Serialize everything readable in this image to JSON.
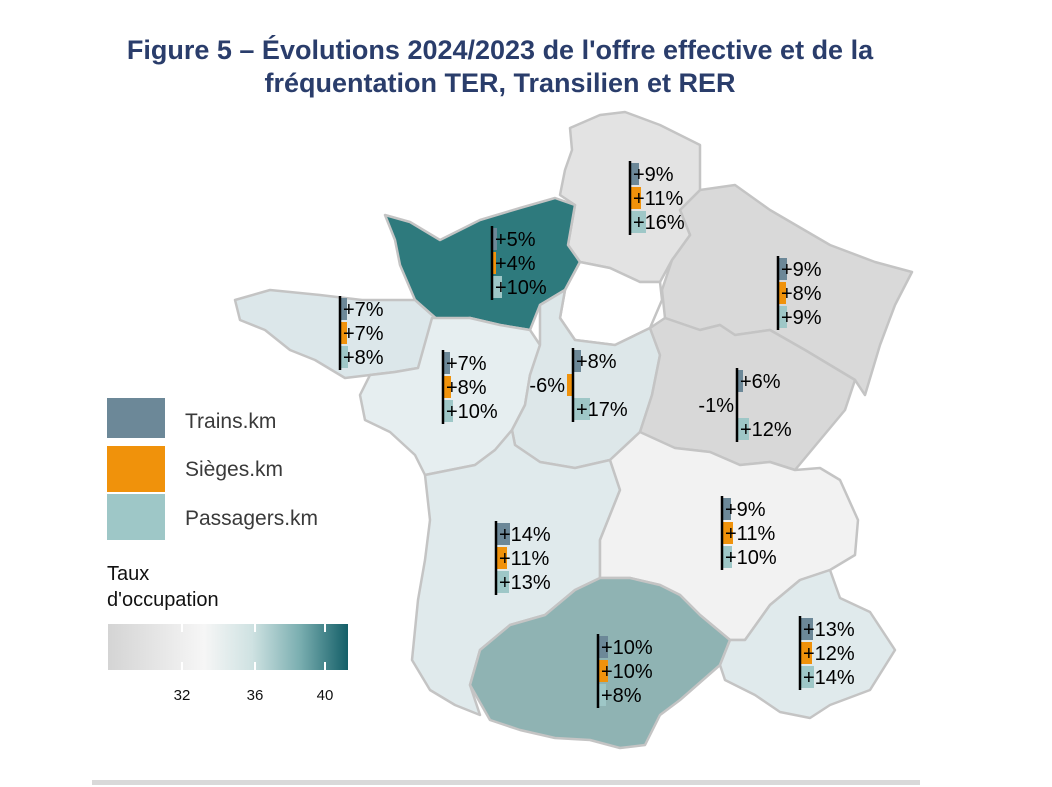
{
  "title": "Figure 5 – Évolutions 2024/2023 de l'offre effective et de la fréquentation TER, Transilien et RER",
  "colors": {
    "trains": "#6c8898",
    "sieges": "#f0920b",
    "passagers": "#9ec7c7",
    "occupation_scale": [
      "#d8d8d8",
      "#f4f4f4",
      "#c4dcdc",
      "#7aaeb0",
      "#1f6b73"
    ]
  },
  "legend": {
    "items": [
      {
        "label": "Trains.km",
        "color": "#6c8898"
      },
      {
        "label": "Sièges.km",
        "color": "#f0920b"
      },
      {
        "label": "Passagers.km",
        "color": "#9ec7c7"
      }
    ],
    "scale_title_line1": "Taux",
    "scale_title_line2": "d'occupation",
    "scale_ticks": [
      "32",
      "36",
      "40"
    ]
  },
  "regions": [
    {
      "key": "hauts-de-france",
      "trains": "+9%",
      "sieges": "+11%",
      "passagers": "+16%",
      "trains_v": 9,
      "sieges_v": 11,
      "passagers_v": 16
    },
    {
      "key": "normandie",
      "trains": "+5%",
      "sieges": "+4%",
      "passagers": "+10%",
      "trains_v": 5,
      "sieges_v": 4,
      "passagers_v": 10
    },
    {
      "key": "grand-est",
      "trains": "+9%",
      "sieges": "+8%",
      "passagers": "+9%",
      "trains_v": 9,
      "sieges_v": 8,
      "passagers_v": 9
    },
    {
      "key": "bretagne",
      "trains": "+7%",
      "sieges": "+7%",
      "passagers": "+8%",
      "trains_v": 7,
      "sieges_v": 7,
      "passagers_v": 8
    },
    {
      "key": "pays-de-la-loire",
      "trains": "+7%",
      "sieges": "+8%",
      "passagers": "+10%",
      "trains_v": 7,
      "sieges_v": 8,
      "passagers_v": 10
    },
    {
      "key": "centre-val-de-loire",
      "trains": "+8%",
      "sieges": "-6%",
      "passagers": "+17%",
      "trains_v": 8,
      "sieges_v": -6,
      "passagers_v": 17
    },
    {
      "key": "bourgogne-franche-comte",
      "trains": "+6%",
      "sieges": "-1%",
      "passagers": "+12%",
      "trains_v": 6,
      "sieges_v": -1,
      "passagers_v": 12
    },
    {
      "key": "nouvelle-aquitaine",
      "trains": "+14%",
      "sieges": "+11%",
      "passagers": "+13%",
      "trains_v": 14,
      "sieges_v": 11,
      "passagers_v": 13
    },
    {
      "key": "auvergne-rhone-alpes",
      "trains": "+9%",
      "sieges": "+11%",
      "passagers": "+10%",
      "trains_v": 9,
      "sieges_v": 11,
      "passagers_v": 10
    },
    {
      "key": "occitanie",
      "trains": "+10%",
      "sieges": "+10%",
      "passagers": "+8%",
      "trains_v": 10,
      "sieges_v": 10,
      "passagers_v": 8
    },
    {
      "key": "paca",
      "trains": "+13%",
      "sieges": "+12%",
      "passagers": "+14%",
      "trains_v": 13,
      "sieges_v": 12,
      "passagers_v": 14
    }
  ]
}
